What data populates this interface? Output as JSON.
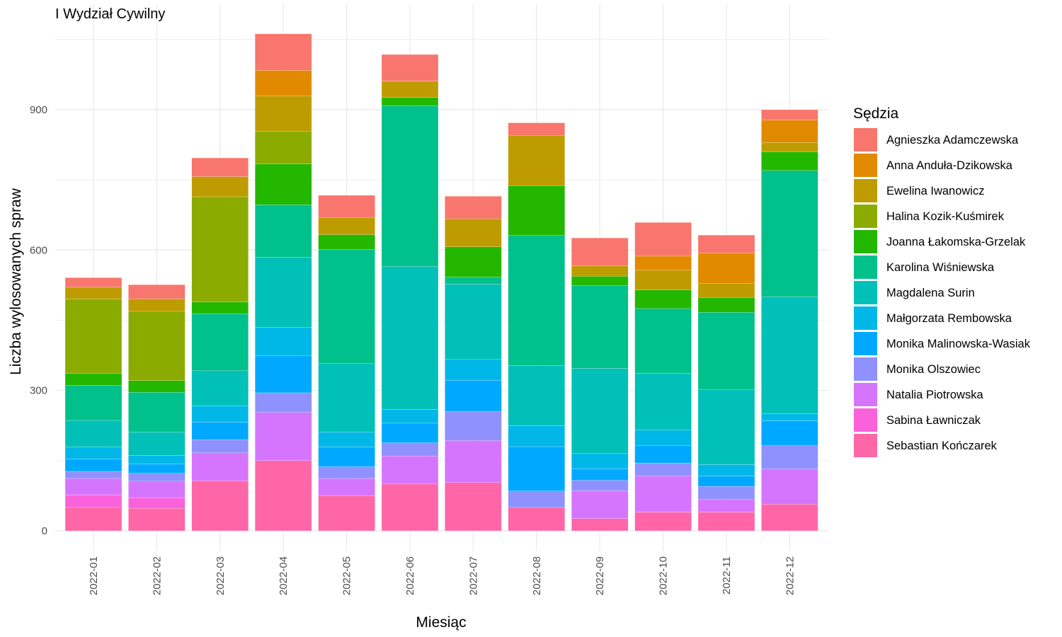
{
  "chart_data": {
    "type": "bar",
    "stacked": true,
    "title": "I Wydział Cywilny",
    "xlabel": "Miesiąc",
    "ylabel": "Liczba wylosowanych spraw",
    "ylim": [
      0,
      1060
    ],
    "yticks": [
      0,
      300,
      600,
      900
    ],
    "grid": true,
    "legend_title": "Sędzia",
    "legend_position": "right",
    "categories": [
      "2022-01",
      "2022-02",
      "2022-03",
      "2022-04",
      "2022-05",
      "2022-06",
      "2022-07",
      "2022-08",
      "2022-09",
      "2022-10",
      "2022-11",
      "2022-12"
    ],
    "series": [
      {
        "name": "Sebastian Kończarek",
        "color": "#FF66A8",
        "values": [
          50,
          48,
          107,
          150,
          75,
          100,
          103,
          50,
          26,
          40,
          40,
          57
        ]
      },
      {
        "name": "Sabina Ławniczak",
        "color": "#FA62DB",
        "values": [
          27,
          23,
          0,
          0,
          0,
          0,
          0,
          0,
          0,
          0,
          0,
          0
        ]
      },
      {
        "name": "Natalia Piotrowska",
        "color": "#D575FE",
        "values": [
          35,
          35,
          60,
          103,
          37,
          60,
          90,
          0,
          60,
          77,
          27,
          75
        ]
      },
      {
        "name": "Monika Olszowiec",
        "color": "#8F91FF",
        "values": [
          15,
          17,
          28,
          42,
          25,
          28,
          62,
          35,
          22,
          28,
          28,
          50
        ]
      },
      {
        "name": "Monika Malinowska-Wasiak",
        "color": "#00A9FF",
        "values": [
          27,
          20,
          37,
          80,
          42,
          42,
          67,
          95,
          25,
          37,
          22,
          53
        ]
      },
      {
        "name": "Małgorzata Rembowska",
        "color": "#00B8E7",
        "values": [
          25,
          18,
          35,
          60,
          32,
          30,
          45,
          45,
          32,
          33,
          25,
          15
        ]
      },
      {
        "name": "Magdalena Surin",
        "color": "#00C0B8",
        "values": [
          57,
          50,
          75,
          150,
          147,
          305,
          160,
          128,
          182,
          122,
          160,
          250
        ]
      },
      {
        "name": "Karolina Wiśniewska",
        "color": "#00C08B",
        "values": [
          75,
          85,
          122,
          112,
          243,
          343,
          15,
          278,
          177,
          138,
          165,
          270
        ]
      },
      {
        "name": "Joanna Łakomska-Grzelak",
        "color": "#24B700",
        "values": [
          25,
          25,
          25,
          87,
          32,
          18,
          65,
          107,
          20,
          40,
          32,
          40
        ]
      },
      {
        "name": "Halina Kozik-Kuśmirek",
        "color": "#8CAB00",
        "values": [
          160,
          148,
          225,
          70,
          0,
          0,
          0,
          0,
          0,
          0,
          0,
          0
        ]
      },
      {
        "name": "Ewelina Iwanowicz",
        "color": "#BE9C00",
        "values": [
          25,
          27,
          43,
          75,
          37,
          35,
          60,
          107,
          22,
          42,
          30,
          20
        ]
      },
      {
        "name": "Anna Anduła-Dzikowska",
        "color": "#E18A00",
        "values": [
          0,
          0,
          0,
          55,
          0,
          0,
          0,
          0,
          0,
          30,
          65,
          48
        ]
      },
      {
        "name": "Agnieszka Adamczewska",
        "color": "#F8766D",
        "values": [
          20,
          30,
          40,
          78,
          47,
          57,
          48,
          27,
          60,
          72,
          38,
          22
        ]
      }
    ]
  }
}
